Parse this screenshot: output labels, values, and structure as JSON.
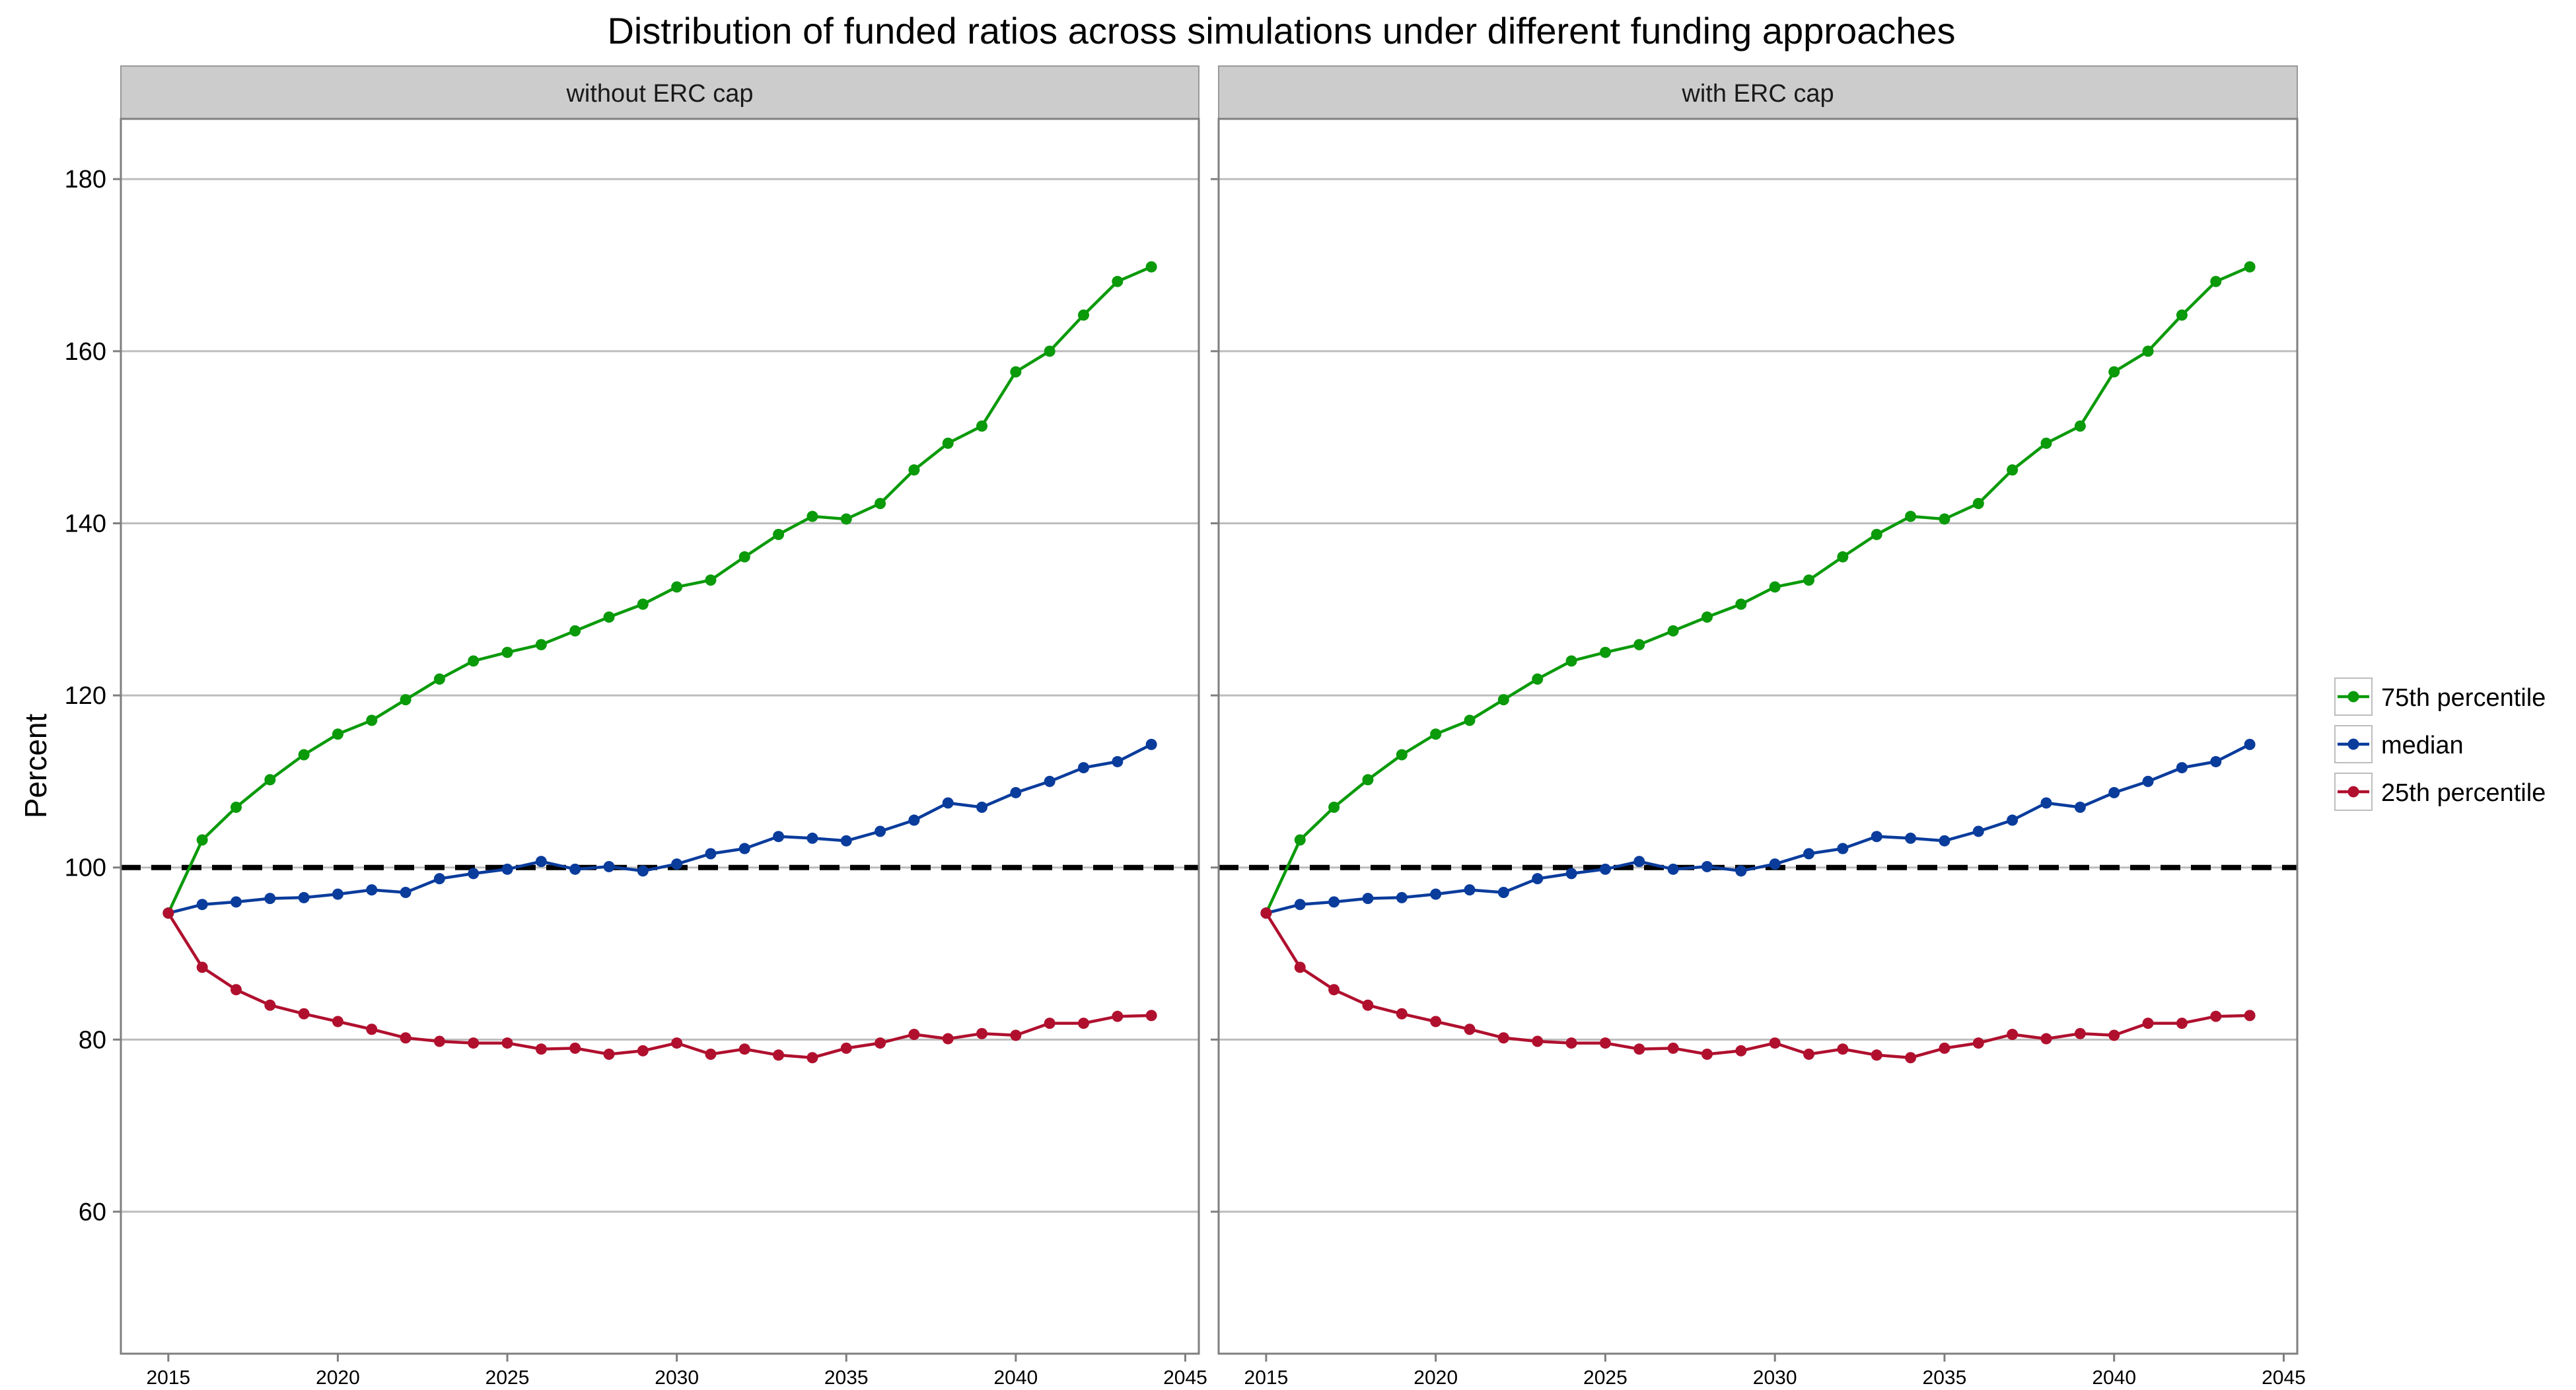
{
  "chart_data": {
    "type": "line",
    "title": "Distribution of funded ratios across simulations under different funding approaches",
    "ylabel": "Percent",
    "xlabel": "",
    "xlim": [
      2013.6,
      2045.4
    ],
    "ylim": [
      43.5,
      187
    ],
    "xticks": [
      2015,
      2020,
      2025,
      2030,
      2035,
      2040,
      2045
    ],
    "yticks": [
      60,
      80,
      100,
      120,
      140,
      160,
      180
    ],
    "reference_line": {
      "y": 100,
      "style": "dashed",
      "color": "#000000"
    },
    "grid": true,
    "legend": {
      "position": "right"
    },
    "x": [
      2015,
      2016,
      2017,
      2018,
      2019,
      2020,
      2021,
      2022,
      2023,
      2024,
      2025,
      2026,
      2027,
      2028,
      2029,
      2030,
      2031,
      2032,
      2033,
      2034,
      2035,
      2036,
      2037,
      2038,
      2039,
      2040,
      2041,
      2042,
      2043,
      2044
    ],
    "panels": [
      {
        "strip_label": "without ERC cap",
        "series": [
          {
            "name": "75th percentile",
            "color": "#0a9a0a",
            "values": [
              94.7,
              103.2,
              107,
              110.2,
              113.1,
              115.5,
              117.1,
              119.5,
              121.9,
              124,
              125,
              125.9,
              127.5,
              129.1,
              130.6,
              132.6,
              133.4,
              136.1,
              138.7,
              140.8,
              140.5,
              142.3,
              146.2,
              149.3,
              151.3,
              157.6,
              160,
              164.2,
              168.1,
              169.8
            ]
          },
          {
            "name": "median",
            "color": "#0a3c9c",
            "values": [
              94.7,
              95.7,
              96,
              96.4,
              96.5,
              96.9,
              97.4,
              97.1,
              98.7,
              99.3,
              99.8,
              100.7,
              99.8,
              100.1,
              99.6,
              100.4,
              101.6,
              102.2,
              103.6,
              103.4,
              103.1,
              104.2,
              105.5,
              107.5,
              107,
              108.7,
              110,
              111.6,
              112.3,
              114.3
            ]
          },
          {
            "name": "25th percentile",
            "color": "#b0102e",
            "values": [
              94.7,
              88.4,
              85.8,
              84,
              83,
              82.1,
              81.2,
              80.2,
              79.8,
              79.6,
              79.6,
              78.9,
              79,
              78.3,
              78.7,
              79.6,
              78.3,
              78.9,
              78.2,
              77.9,
              79,
              79.6,
              80.6,
              80.1,
              80.7,
              80.5,
              81.9,
              81.9,
              82.7,
              82.8
            ]
          }
        ]
      },
      {
        "strip_label": "with ERC cap",
        "series": [
          {
            "name": "75th percentile",
            "color": "#0a9a0a",
            "values": [
              94.7,
              103.2,
              107,
              110.2,
              113.1,
              115.5,
              117.1,
              119.5,
              121.9,
              124,
              125,
              125.9,
              127.5,
              129.1,
              130.6,
              132.6,
              133.4,
              136.1,
              138.7,
              140.8,
              140.5,
              142.3,
              146.2,
              149.3,
              151.3,
              157.6,
              160,
              164.2,
              168.1,
              169.8
            ]
          },
          {
            "name": "median",
            "color": "#0a3c9c",
            "values": [
              94.7,
              95.7,
              96,
              96.4,
              96.5,
              96.9,
              97.4,
              97.1,
              98.7,
              99.3,
              99.8,
              100.7,
              99.8,
              100.1,
              99.6,
              100.4,
              101.6,
              102.2,
              103.6,
              103.4,
              103.1,
              104.2,
              105.5,
              107.5,
              107,
              108.7,
              110,
              111.6,
              112.3,
              114.3
            ]
          },
          {
            "name": "25th percentile",
            "color": "#b0102e",
            "values": [
              94.7,
              88.4,
              85.8,
              84,
              83,
              82.1,
              81.2,
              80.2,
              79.8,
              79.6,
              79.6,
              78.9,
              79,
              78.3,
              78.7,
              79.6,
              78.3,
              78.9,
              78.2,
              77.9,
              79,
              79.6,
              80.6,
              80.1,
              80.7,
              80.5,
              81.9,
              81.9,
              82.7,
              82.8
            ]
          }
        ]
      }
    ],
    "legend_order": [
      "75th percentile",
      "median",
      "25th percentile"
    ]
  }
}
